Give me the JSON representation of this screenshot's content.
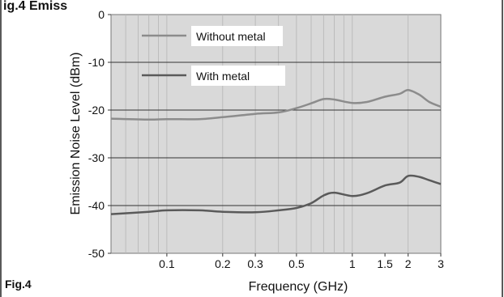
{
  "header_fragment": "ig.4 Emiss",
  "figure_label": "Fig.4",
  "chart_data": {
    "type": "line",
    "xlabel": "Frequency (GHz)",
    "ylabel": "Emission Noise Level (dBm)",
    "x_scale": "log",
    "xlim": [
      0.05,
      3
    ],
    "ylim": [
      -50,
      0
    ],
    "x_ticks": [
      {
        "value": 0.1,
        "label": "0.1"
      },
      {
        "value": 0.2,
        "label": "0.2"
      },
      {
        "value": 0.3,
        "label": "0.3"
      },
      {
        "value": 0.5,
        "label": "0.5"
      },
      {
        "value": 1,
        "label": "1"
      },
      {
        "value": 1.5,
        "label": "1.5"
      },
      {
        "value": 2,
        "label": "2"
      },
      {
        "value": 3,
        "label": "3"
      }
    ],
    "y_ticks": [
      {
        "value": 0,
        "label": "0"
      },
      {
        "value": -10,
        "label": "-10"
      },
      {
        "value": -20,
        "label": "-20"
      },
      {
        "value": -30,
        "label": "-30"
      },
      {
        "value": -40,
        "label": "-40"
      },
      {
        "value": -50,
        "label": "-50"
      }
    ],
    "grid": true,
    "background_color": "#d9d9d9",
    "legend_placement": "top-left",
    "series": [
      {
        "name": "Without metal",
        "color": "#8c8c8c",
        "x": [
          0.05,
          0.08,
          0.1,
          0.15,
          0.2,
          0.3,
          0.4,
          0.5,
          0.6,
          0.7,
          0.8,
          1.0,
          1.2,
          1.5,
          1.8,
          2.0,
          2.3,
          2.6,
          3.0
        ],
        "y": [
          -21.8,
          -22.0,
          -21.9,
          -21.9,
          -21.5,
          -20.8,
          -20.5,
          -19.6,
          -18.6,
          -17.7,
          -17.8,
          -18.5,
          -18.3,
          -17.2,
          -16.6,
          -15.8,
          -16.8,
          -18.3,
          -19.3
        ]
      },
      {
        "name": "With metal",
        "color": "#5a5a5a",
        "x": [
          0.05,
          0.08,
          0.1,
          0.15,
          0.2,
          0.3,
          0.4,
          0.5,
          0.6,
          0.7,
          0.8,
          1.0,
          1.2,
          1.5,
          1.8,
          2.0,
          2.3,
          2.6,
          3.0
        ],
        "y": [
          -41.8,
          -41.3,
          -41.0,
          -41.0,
          -41.3,
          -41.4,
          -41.0,
          -40.5,
          -39.5,
          -37.9,
          -37.3,
          -38.0,
          -37.4,
          -35.8,
          -35.2,
          -33.8,
          -34.0,
          -34.7,
          -35.5
        ]
      }
    ]
  }
}
